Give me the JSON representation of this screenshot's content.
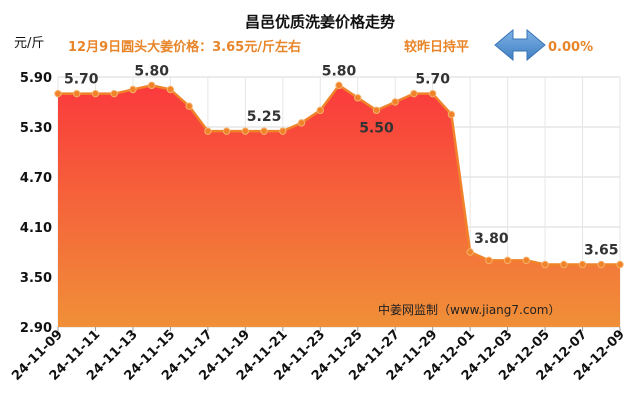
{
  "chart_data": {
    "type": "area",
    "title": "昌邑优质洗姜价格走势",
    "ylabel": "元/斤",
    "ylim": [
      2.9,
      5.9
    ],
    "yticks": [
      "5.90",
      "5.30",
      "4.70",
      "4.10",
      "3.50",
      "2.90"
    ],
    "ytick_values": [
      5.9,
      5.3,
      4.7,
      4.1,
      3.5,
      2.9
    ],
    "x": [
      "24-11-09",
      "24-11-10",
      "24-11-11",
      "24-11-12",
      "24-11-13",
      "24-11-14",
      "24-11-15",
      "24-11-16",
      "24-11-17",
      "24-11-18",
      "24-11-19",
      "24-11-20",
      "24-11-21",
      "24-11-22",
      "24-11-23",
      "24-11-24",
      "24-11-25",
      "24-11-26",
      "24-11-27",
      "24-11-28",
      "24-11-29",
      "24-11-30",
      "24-12-01",
      "24-12-02",
      "24-12-03",
      "24-12-04",
      "24-12-05",
      "24-12-06",
      "24-12-07",
      "24-12-08",
      "24-12-09"
    ],
    "xticks": [
      "24-11-09",
      "24-11-11",
      "24-11-13",
      "24-11-15",
      "24-11-17",
      "24-11-19",
      "24-11-21",
      "24-11-23",
      "24-11-25",
      "24-11-27",
      "24-11-29",
      "24-12-01",
      "24-12-03",
      "24-12-05",
      "24-12-07",
      "24-12-09"
    ],
    "values": [
      5.7,
      5.7,
      5.7,
      5.7,
      5.75,
      5.8,
      5.75,
      5.55,
      5.25,
      5.25,
      5.25,
      5.25,
      5.25,
      5.35,
      5.5,
      5.8,
      5.65,
      5.5,
      5.6,
      5.7,
      5.7,
      5.45,
      3.8,
      3.7,
      3.7,
      3.7,
      3.65,
      3.65,
      3.65,
      3.65,
      3.65
    ],
    "data_labels": [
      {
        "index": 0,
        "text": "5.70"
      },
      {
        "index": 5,
        "text": "5.80"
      },
      {
        "index": 11,
        "text": "5.25"
      },
      {
        "index": 15,
        "text": "5.80"
      },
      {
        "index": 17,
        "text": "5.50"
      },
      {
        "index": 20,
        "text": "5.70"
      },
      {
        "index": 22,
        "text": "3.80"
      },
      {
        "index": 29,
        "text": "3.65"
      }
    ],
    "colors": {
      "line": "#f0832a",
      "fill_top": "#fa3a3c",
      "fill_bottom": "#f09038",
      "title": "#111111",
      "annotation": "#e8852a",
      "arrow": "#5b9bd5"
    },
    "annotations": {
      "price_note": "12月9日圆头大姜价格：3.65元/斤左右",
      "trend_note": "较昨日持平",
      "trend_arrow": "double-arrow-icon",
      "trend_change": "0.00%",
      "source": "中姜网监制（www.jiang7.com）"
    },
    "grid": true,
    "legend": "none"
  }
}
